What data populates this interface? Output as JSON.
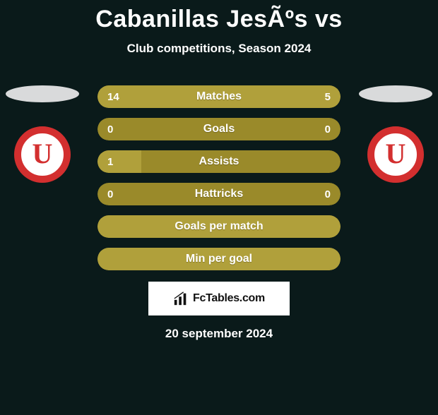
{
  "title": "Cabanillas JesÃºs vs",
  "subtitle": "Club competitions, Season 2024",
  "date": "20 september 2024",
  "watermark": {
    "text": "FcTables.com"
  },
  "palette": {
    "background": "#0a1a1a",
    "bar_base": "#9a8a2a",
    "bar_fill": "#b0a03b",
    "oval": "#d9dadb",
    "badge_border": "#d32f2f",
    "badge_bg": "#ffffff",
    "text": "#ffffff"
  },
  "badges": {
    "left": {
      "letter": "U"
    },
    "right": {
      "letter": "U"
    }
  },
  "bars": [
    {
      "label": "Matches",
      "left_value": "14",
      "right_value": "5",
      "left_fill_pct": 79,
      "right_fill_pct": 39
    },
    {
      "label": "Goals",
      "left_value": "0",
      "right_value": "0",
      "left_fill_pct": 0,
      "right_fill_pct": 0
    },
    {
      "label": "Assists",
      "left_value": "1",
      "right_value": "",
      "left_fill_pct": 18,
      "right_fill_pct": 0
    },
    {
      "label": "Hattricks",
      "left_value": "0",
      "right_value": "0",
      "left_fill_pct": 0,
      "right_fill_pct": 0
    },
    {
      "label": "Goals per match",
      "left_value": "",
      "right_value": "",
      "left_fill_pct": 100,
      "right_fill_pct": 0,
      "full": true
    },
    {
      "label": "Min per goal",
      "left_value": "",
      "right_value": "",
      "left_fill_pct": 100,
      "right_fill_pct": 0,
      "full": true
    }
  ]
}
